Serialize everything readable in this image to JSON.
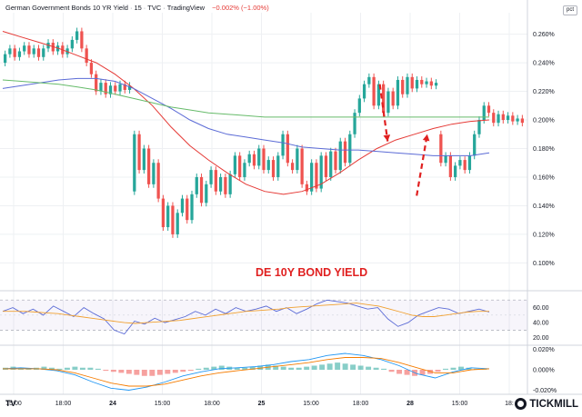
{
  "header": {
    "title": "German Government Bonds 10 YR Yield",
    "interval": "15",
    "exchange": "TVC",
    "source": "TradingView",
    "change": "−0.002% (−1.00%)"
  },
  "axis_unit_label": "pct",
  "watermark": "DE 10Y BOND YIELD",
  "brand": "TICKMILL",
  "platform_mark": "TV",
  "chart_data": [
    {
      "type": "candlestick",
      "title": "German Government Bonds 10 YR Yield",
      "y_unit": "%",
      "ylim": [
        0.085,
        0.275
      ],
      "y_ticks": [
        0.1,
        0.12,
        0.14,
        0.16,
        0.18,
        0.2,
        0.22,
        0.24,
        0.26
      ],
      "y_tick_labels": [
        "0.100%",
        "0.120%",
        "0.140%",
        "0.160%",
        "0.180%",
        "0.200%",
        "0.220%",
        "0.240%",
        "0.260%"
      ],
      "x_tick_labels": [
        "15:00",
        "18:00",
        "24",
        "15:00",
        "18:00",
        "25",
        "15:00",
        "18:00",
        "28",
        "15:00",
        "18:"
      ],
      "grid": true,
      "candles": [
        [
          0.24,
          0.246
        ],
        [
          0.246,
          0.25
        ],
        [
          0.25,
          0.244
        ],
        [
          0.244,
          0.248
        ],
        [
          0.248,
          0.252
        ],
        [
          0.252,
          0.246
        ],
        [
          0.246,
          0.25
        ],
        [
          0.25,
          0.244
        ],
        [
          0.244,
          0.25
        ],
        [
          0.25,
          0.254
        ],
        [
          0.254,
          0.248
        ],
        [
          0.248,
          0.252
        ],
        [
          0.252,
          0.246
        ],
        [
          0.246,
          0.25
        ],
        [
          0.25,
          0.256
        ],
        [
          0.256,
          0.262
        ],
        [
          0.262,
          0.25
        ],
        [
          0.25,
          0.24
        ],
        [
          0.24,
          0.232
        ],
        [
          0.232,
          0.22
        ],
        [
          0.22,
          0.226
        ],
        [
          0.226,
          0.218
        ],
        [
          0.218,
          0.224
        ],
        [
          0.224,
          0.22
        ],
        [
          0.22,
          0.225
        ],
        [
          0.225,
          0.221
        ],
        [
          0.221,
          0.224
        ],
        [
          0.15,
          0.19
        ],
        [
          0.19,
          0.165
        ],
        [
          0.165,
          0.18
        ],
        [
          0.18,
          0.155
        ],
        [
          0.155,
          0.17
        ],
        [
          0.17,
          0.145
        ],
        [
          0.145,
          0.125
        ],
        [
          0.125,
          0.14
        ],
        [
          0.14,
          0.12
        ],
        [
          0.12,
          0.135
        ],
        [
          0.135,
          0.145
        ],
        [
          0.145,
          0.13
        ],
        [
          0.13,
          0.148
        ],
        [
          0.148,
          0.16
        ],
        [
          0.16,
          0.142
        ],
        [
          0.142,
          0.155
        ],
        [
          0.155,
          0.165
        ],
        [
          0.165,
          0.15
        ],
        [
          0.15,
          0.16
        ],
        [
          0.16,
          0.148
        ],
        [
          0.148,
          0.162
        ],
        [
          0.162,
          0.175
        ],
        [
          0.175,
          0.16
        ],
        [
          0.16,
          0.17
        ],
        [
          0.17,
          0.176
        ],
        [
          0.176,
          0.168
        ],
        [
          0.168,
          0.18
        ],
        [
          0.18,
          0.165
        ],
        [
          0.165,
          0.172
        ],
        [
          0.172,
          0.16
        ],
        [
          0.16,
          0.175
        ],
        [
          0.175,
          0.19
        ],
        [
          0.19,
          0.17
        ],
        [
          0.17,
          0.165
        ],
        [
          0.165,
          0.18
        ],
        [
          0.18,
          0.155
        ],
        [
          0.155,
          0.15
        ],
        [
          0.15,
          0.17
        ],
        [
          0.17,
          0.152
        ],
        [
          0.152,
          0.175
        ],
        [
          0.175,
          0.16
        ],
        [
          0.16,
          0.178
        ],
        [
          0.178,
          0.165
        ],
        [
          0.165,
          0.185
        ],
        [
          0.185,
          0.17
        ],
        [
          0.17,
          0.19
        ],
        [
          0.19,
          0.205
        ],
        [
          0.205,
          0.215
        ],
        [
          0.215,
          0.225
        ],
        [
          0.225,
          0.23
        ],
        [
          0.23,
          0.21
        ],
        [
          0.21,
          0.225
        ],
        [
          0.225,
          0.205
        ],
        [
          0.205,
          0.22
        ],
        [
          0.22,
          0.21
        ],
        [
          0.21,
          0.228
        ],
        [
          0.228,
          0.218
        ],
        [
          0.218,
          0.23
        ],
        [
          0.23,
          0.222
        ],
        [
          0.222,
          0.228
        ],
        [
          0.228,
          0.225
        ],
        [
          0.225,
          0.227
        ],
        [
          0.227,
          0.224
        ],
        [
          0.224,
          0.226
        ],
        [
          0.19,
          0.17
        ],
        [
          0.17,
          0.175
        ],
        [
          0.175,
          0.16
        ],
        [
          0.16,
          0.168
        ],
        [
          0.168,
          0.172
        ],
        [
          0.172,
          0.165
        ],
        [
          0.165,
          0.175
        ],
        [
          0.175,
          0.19
        ],
        [
          0.19,
          0.2
        ],
        [
          0.2,
          0.21
        ],
        [
          0.21,
          0.205
        ],
        [
          0.205,
          0.198
        ],
        [
          0.198,
          0.204
        ],
        [
          0.204,
          0.2
        ],
        [
          0.2,
          0.203
        ],
        [
          0.203,
          0.199
        ],
        [
          0.199,
          0.201
        ],
        [
          0.201,
          0.198
        ]
      ],
      "moving_averages": [
        {
          "color": "#e53935",
          "values": [
            0.262,
            0.258,
            0.254,
            0.25,
            0.245,
            0.24,
            0.232,
            0.222,
            0.21,
            0.195,
            0.182,
            0.172,
            0.163,
            0.155,
            0.15,
            0.148,
            0.15,
            0.155,
            0.163,
            0.172,
            0.18,
            0.186,
            0.19,
            0.194,
            0.197,
            0.199,
            0.2
          ]
        },
        {
          "color": "#5b6bd6",
          "values": [
            0.222,
            0.224,
            0.226,
            0.228,
            0.229,
            0.229,
            0.227,
            0.222,
            0.215,
            0.208,
            0.2,
            0.194,
            0.19,
            0.188,
            0.186,
            0.184,
            0.181,
            0.18,
            0.179,
            0.179,
            0.178,
            0.177,
            0.176,
            0.175,
            0.175,
            0.175,
            0.177
          ]
        },
        {
          "color": "#66bb6a",
          "values": [
            0.228,
            0.227,
            0.226,
            0.225,
            0.223,
            0.221,
            0.218,
            0.215,
            0.212,
            0.209,
            0.207,
            0.205,
            0.204,
            0.203,
            0.202,
            0.202,
            0.202,
            0.202,
            0.202,
            0.202,
            0.202,
            0.202,
            0.202,
            0.202,
            0.202,
            0.202,
            0.202
          ]
        }
      ],
      "annotations": [
        {
          "type": "arrow",
          "style": "dashed",
          "color": "#e02020",
          "direction": "down",
          "from_x": 0.72,
          "from_y": 0.225,
          "to_x": 0.735,
          "to_y": 0.185
        },
        {
          "type": "arrow",
          "style": "dashed",
          "color": "#e02020",
          "direction": "up",
          "from_x": 0.79,
          "from_y": 0.147,
          "to_x": 0.81,
          "to_y": 0.19
        }
      ]
    },
    {
      "type": "line",
      "name": "RSI",
      "ylim": [
        10,
        80
      ],
      "y_ticks": [
        20,
        40,
        60
      ],
      "y_tick_labels": [
        "20.00",
        "40.00",
        "60.00"
      ],
      "band": [
        30,
        70
      ],
      "series": [
        {
          "color": "#5b6bd6",
          "values": [
            55,
            60,
            52,
            58,
            50,
            62,
            55,
            48,
            60,
            52,
            45,
            30,
            25,
            42,
            38,
            46,
            40,
            44,
            48,
            55,
            50,
            58,
            52,
            60,
            55,
            58,
            62,
            55,
            60,
            52,
            58,
            65,
            70,
            68,
            66,
            62,
            58,
            60,
            45,
            35,
            40,
            50,
            55,
            60,
            58,
            52,
            55,
            58,
            54
          ]
        },
        {
          "color": "#f0a030",
          "values": [
            55,
            55,
            55,
            54,
            53,
            52,
            50,
            48,
            46,
            44,
            42,
            40,
            39,
            40,
            41,
            42,
            43,
            45,
            47,
            49,
            51,
            53,
            55,
            56,
            57,
            58,
            60,
            61,
            62,
            63,
            64,
            65,
            66,
            64,
            62,
            58,
            54,
            50,
            48,
            48,
            50,
            52,
            54,
            55,
            55
          ]
        }
      ]
    },
    {
      "type": "bar",
      "name": "MACD",
      "ylim": [
        -0.024,
        0.024
      ],
      "y_ticks": [
        0.02,
        0,
        -0.02
      ],
      "y_tick_labels": [
        "0.020%",
        "0.000%",
        "-0.020%"
      ],
      "histogram": [
        0.002,
        0.003,
        0.002,
        0.001,
        0.002,
        0.003,
        0.002,
        0.001,
        0.002,
        0.003,
        0.002,
        0.002,
        0.001,
        -0.001,
        -0.002,
        -0.003,
        -0.004,
        -0.005,
        -0.006,
        -0.006,
        -0.005,
        -0.004,
        -0.003,
        -0.002,
        -0.001,
        0.001,
        0.002,
        0.003,
        0.004,
        0.003,
        0.002,
        0.002,
        0.003,
        0.004,
        0.005,
        0.004,
        0.003,
        0.002,
        0.002,
        0.003,
        0.004,
        0.005,
        0.006,
        0.007,
        0.006,
        0.005,
        0.004,
        0.003,
        0.002,
        0.001,
        -0.002,
        -0.004,
        -0.005,
        -0.006,
        -0.005,
        -0.004,
        -0.002,
        0.001,
        0.002,
        0.003,
        0.002,
        0.001,
        0.001
      ],
      "series": [
        {
          "color": "#2196f3",
          "values": [
            0.001,
            0.002,
            0.001,
            -0.001,
            -0.005,
            -0.012,
            -0.018,
            -0.02,
            -0.017,
            -0.012,
            -0.006,
            -0.002,
            0.001,
            0.002,
            0.003,
            0.005,
            0.008,
            0.01,
            0.014,
            0.016,
            0.014,
            0.01,
            0.004,
            -0.004,
            -0.008,
            -0.002,
            0.002,
            0.001
          ]
        },
        {
          "color": "#f57c00",
          "values": [
            0.001,
            0.001,
            0.001,
            0.0,
            -0.003,
            -0.008,
            -0.013,
            -0.016,
            -0.016,
            -0.014,
            -0.01,
            -0.006,
            -0.003,
            -0.001,
            0.001,
            0.003,
            0.005,
            0.007,
            0.01,
            0.012,
            0.012,
            0.011,
            0.007,
            0.002,
            -0.003,
            -0.003,
            0.0,
            0.001
          ]
        }
      ]
    }
  ]
}
